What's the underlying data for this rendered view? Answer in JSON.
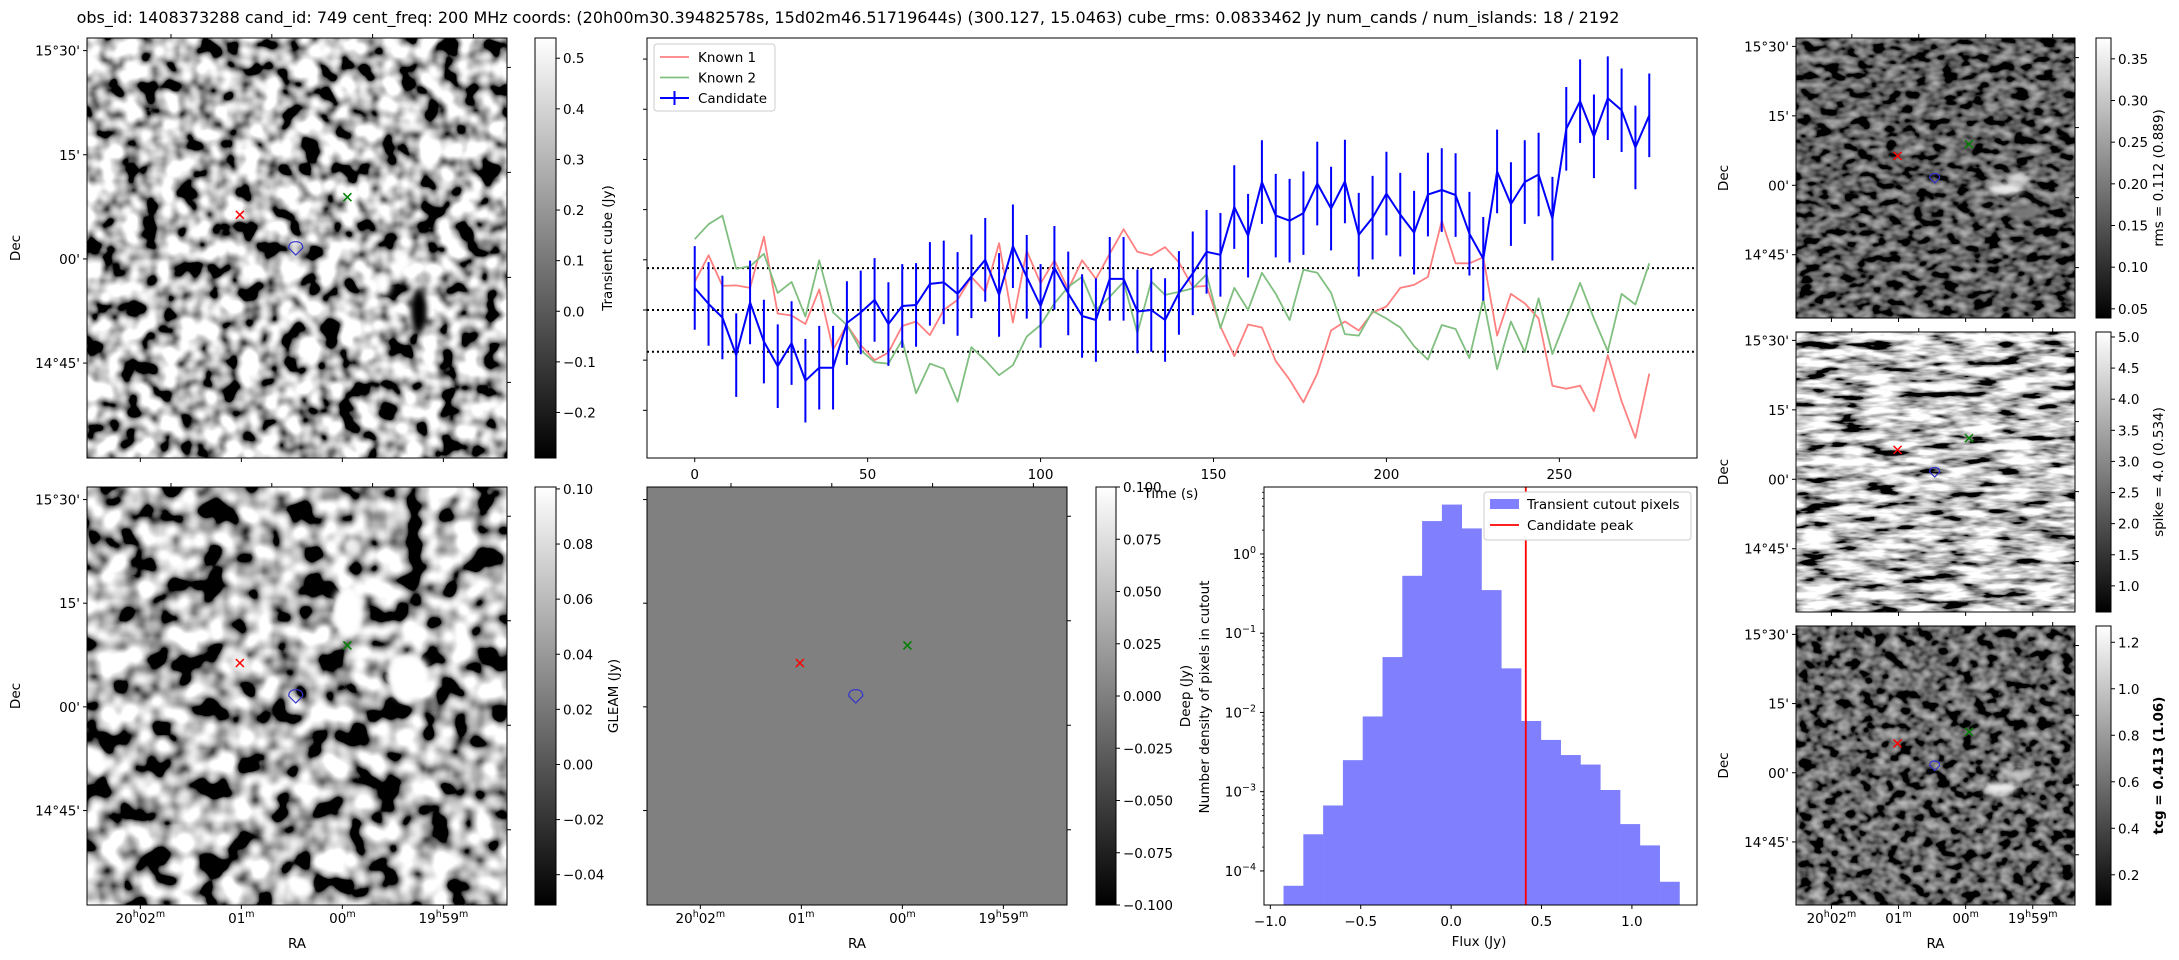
{
  "title": "obs_id: 1408373288 cand_id: 749 cent_freq: 200 MHz coords: (20h00m30.39482578s, 15d02m46.51719644s) (300.127, 15.0463) cube_rms: 0.0833462 Jy num_cands / num_islands: 18 / 2192",
  "colors": {
    "known1": "#ff8080",
    "known2": "#80bf80",
    "candidate": "#0000ff",
    "hist_fill": "#8080ff",
    "peak_line": "#ff0000",
    "marker_known1": "#ff0000",
    "marker_known2": "#008000",
    "marker_candidate": "#3333cc"
  },
  "sky_axes": {
    "xlabel": "RA",
    "ylabel": "Dec",
    "dec_ticks": [
      "15°30'",
      "15'",
      "00'",
      "14°45'"
    ],
    "ra_ticks": [
      "20h02m",
      "01m",
      "00m",
      "19h59m"
    ]
  },
  "sky_panels": [
    {
      "id": "transient",
      "cbar_label": "Transient cube (Jy)",
      "cbar_range": [
        -0.29,
        0.54
      ],
      "cbar_ticks": [
        -0.2,
        -0.1,
        0.0,
        0.1,
        0.2,
        0.3,
        0.4,
        0.5
      ],
      "decimals": 1,
      "bold_label": false
    },
    {
      "id": "gleam",
      "cbar_label": "GLEAM (Jy)",
      "cbar_range": [
        -0.051,
        0.1007
      ],
      "cbar_ticks": [
        -0.04,
        -0.02,
        0.0,
        0.02,
        0.04,
        0.06,
        0.08,
        0.1
      ],
      "decimals": 2,
      "bold_label": false
    },
    {
      "id": "deep",
      "cbar_label": "Deep (Jy)",
      "cbar_range": [
        -0.1,
        0.1
      ],
      "cbar_ticks": [
        -0.1,
        -0.075,
        -0.05,
        -0.025,
        0.0,
        0.025,
        0.05,
        0.075,
        0.1
      ],
      "decimals": 3,
      "bold_label": false
    },
    {
      "id": "rms",
      "cbar_label": "rms = 0.112 (0.889)",
      "cbar_range": [
        0.039,
        0.375
      ],
      "cbar_ticks": [
        0.05,
        0.1,
        0.15,
        0.2,
        0.25,
        0.3,
        0.35
      ],
      "decimals": 2,
      "bold_label": false
    },
    {
      "id": "spike",
      "cbar_label": "spike = 4.0 (0.534)",
      "cbar_range": [
        0.58,
        5.08
      ],
      "cbar_ticks": [
        1.0,
        1.5,
        2.0,
        2.5,
        3.0,
        3.5,
        4.0,
        4.5,
        5.0
      ],
      "decimals": 1,
      "bold_label": false
    },
    {
      "id": "tcg",
      "cbar_label": "tcg = 0.413 (1.06)",
      "cbar_range": [
        0.07,
        1.27
      ],
      "cbar_ticks": [
        0.2,
        0.4,
        0.6,
        0.8,
        1.0,
        1.2
      ],
      "decimals": 1,
      "bold_label": true
    }
  ],
  "chart_data": [
    {
      "type": "line",
      "title": "",
      "xlabel": "Time (s)",
      "ylabel": "",
      "xlim": [
        -13.8,
        289.8
      ],
      "ylim": [
        -0.295,
        0.542
      ],
      "xticks": [
        0,
        50,
        100,
        150,
        200,
        250
      ],
      "yticks": [
        -0.2,
        -0.1,
        0.0,
        0.1,
        0.2,
        0.3,
        0.4,
        0.5
      ],
      "legend": {
        "placement": "top-left",
        "entries": [
          "Known 1",
          "Known 2",
          "Candidate"
        ]
      },
      "hlines": [
        -0.0833462,
        0.0,
        0.0833462
      ],
      "x_start": 0,
      "x_step": 4,
      "series": [
        {
          "name": "Known 1",
          "values": [
            0.056,
            0.109,
            0.048,
            0.049,
            0.044,
            0.146,
            -0.007,
            -0.011,
            -0.028,
            0.041,
            -0.079,
            -0.03,
            -0.07,
            -0.1,
            -0.085,
            -0.032,
            -0.023,
            -0.05,
            0.0,
            0.02,
            0.066,
            0.036,
            0.133,
            -0.025,
            0.118,
            0.053,
            0.099,
            0.041,
            0.099,
            0.062,
            0.112,
            0.161,
            0.116,
            0.109,
            0.125,
            0.095,
            0.046,
            0.048,
            -0.033,
            -0.092,
            -0.029,
            -0.035,
            -0.102,
            -0.139,
            -0.184,
            -0.127,
            -0.041,
            -0.023,
            -0.041,
            -0.005,
            0.007,
            0.044,
            0.05,
            0.066,
            0.178,
            0.093,
            0.093,
            0.105,
            -0.051,
            0.032,
            0.013,
            -0.017,
            -0.151,
            -0.157,
            -0.151,
            -0.202,
            -0.09,
            -0.182,
            -0.255,
            -0.127
          ]
        },
        {
          "name": "Known 2",
          "values": [
            0.141,
            0.171,
            0.188,
            0.082,
            0.087,
            0.112,
            0.034,
            0.056,
            -0.013,
            0.099,
            -0.005,
            -0.03,
            -0.08,
            -0.104,
            -0.107,
            -0.06,
            -0.166,
            -0.107,
            -0.117,
            -0.183,
            -0.074,
            -0.1,
            -0.13,
            -0.11,
            -0.053,
            -0.03,
            0.013,
            0.046,
            0.066,
            0.0,
            0.026,
            0.056,
            -0.046,
            0.057,
            0.03,
            0.036,
            0.043,
            0.071,
            -0.036,
            0.044,
            0.0,
            0.074,
            0.032,
            -0.02,
            0.08,
            0.074,
            0.034,
            -0.048,
            -0.051,
            -0.002,
            -0.017,
            -0.035,
            -0.072,
            -0.099,
            -0.03,
            -0.038,
            -0.096,
            0.022,
            -0.118,
            -0.023,
            -0.084,
            0.023,
            -0.088,
            -0.017,
            0.054,
            -0.017,
            -0.082,
            0.032,
            0.011,
            0.093
          ]
        },
        {
          "name": "Candidate",
          "error": 0.0833,
          "values": [
            0.044,
            0.012,
            -0.015,
            -0.09,
            0.015,
            -0.063,
            -0.112,
            -0.066,
            -0.141,
            -0.115,
            -0.115,
            -0.026,
            -0.005,
            0.02,
            -0.028,
            0.008,
            0.01,
            0.052,
            0.055,
            0.032,
            0.067,
            0.1,
            0.03,
            0.127,
            0.066,
            0.008,
            0.084,
            0.033,
            -0.012,
            -0.02,
            0.062,
            0.062,
            -0.003,
            0.0,
            -0.02,
            0.034,
            0.073,
            0.116,
            0.11,
            0.205,
            0.148,
            0.255,
            0.188,
            0.178,
            0.193,
            0.252,
            0.202,
            0.256,
            0.15,
            0.184,
            0.232,
            0.19,
            0.154,
            0.23,
            0.239,
            0.229,
            0.152,
            0.102,
            0.276,
            0.211,
            0.255,
            0.27,
            0.182,
            0.361,
            0.416,
            0.346,
            0.422,
            0.398,
            0.324,
            0.388
          ]
        }
      ]
    },
    {
      "type": "bar",
      "title": "",
      "xlabel": "Flux (Jy)",
      "ylabel": "Number density of pixels in cutout",
      "yscale": "log",
      "xlim": [
        -1.035,
        1.36
      ],
      "ylim_log10": [
        -4.43,
        0.845
      ],
      "xticks": [
        -1.0,
        -0.5,
        0.0,
        0.5,
        1.0
      ],
      "ytick_exponents": [
        0,
        -1,
        -2,
        -3,
        -4
      ],
      "legend": {
        "placement": "top-right",
        "entries": [
          "Transient cutout pixels",
          "Candidate peak"
        ]
      },
      "bin_start": -0.927,
      "bin_width": 0.1095,
      "densities": [
        6.5e-05,
        0.00029,
        0.00067,
        0.0025,
        0.0089,
        0.05,
        0.53,
        2.6,
        4.2,
        2.1,
        0.35,
        0.036,
        0.0078,
        0.0045,
        0.0029,
        0.0022,
        0.00105,
        0.00039,
        0.00021,
        7.3e-05
      ],
      "candidate_peak": 0.413
    }
  ]
}
